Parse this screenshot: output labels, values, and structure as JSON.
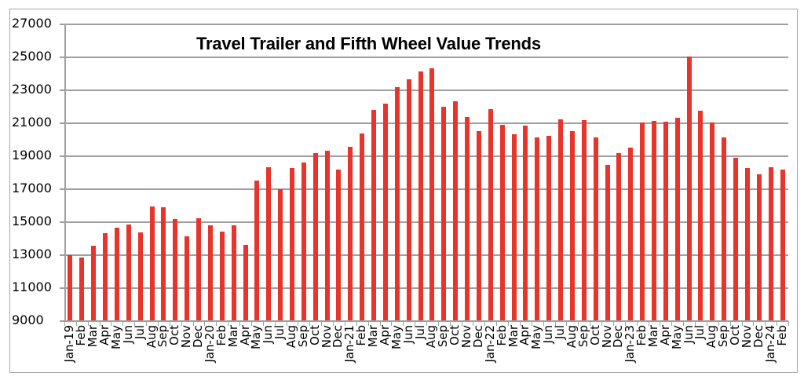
{
  "chart_data": {
    "type": "bar",
    "title": "Travel Trailer and Fifth Wheel Value Trends",
    "xlabel": "",
    "ylabel": "",
    "ylim": [
      9000,
      27000
    ],
    "yticks": [
      "27000",
      "25000",
      "23000",
      "21000",
      "19000",
      "17000",
      "15000",
      "13000",
      "11000",
      "9000"
    ],
    "grid": true,
    "legend": null,
    "bar_color": "#e8342a",
    "categories": [
      "Jan-19",
      "Feb",
      "Mar",
      "Apr",
      "May",
      "Jun",
      "Jul",
      "Aug",
      "Sep",
      "Oct",
      "Nov",
      "Dec",
      "Jan-20",
      "Feb",
      "Mar",
      "Apr",
      "May",
      "Jun",
      "Jul",
      "Aug",
      "Sep",
      "Oct",
      "Nov",
      "Dec",
      "Jan-21",
      "Feb",
      "Mar",
      "Apr",
      "May",
      "Jun",
      "Jul",
      "Aug",
      "Sep",
      "Oct",
      "Nov",
      "Dec",
      "Jan-22",
      "Feb",
      "Mar",
      "Apr",
      "May",
      "Jun",
      "Jul",
      "Aug",
      "Sep",
      "Oct",
      "Nov",
      "Dec",
      "Jan-23",
      "Feb",
      "Mar",
      "Apr",
      "May",
      "Jun",
      "Jul",
      "Aug",
      "Sep",
      "Oct",
      "Nov",
      "Dec",
      "Jan-24",
      "Feb"
    ],
    "values": [
      13000,
      12850,
      13570,
      14330,
      14670,
      14860,
      14380,
      15950,
      15900,
      15190,
      14140,
      15240,
      14810,
      14450,
      14830,
      13620,
      17520,
      18340,
      17000,
      18300,
      18640,
      19210,
      19340,
      18200,
      19560,
      20370,
      21830,
      22210,
      23180,
      23650,
      24150,
      24310,
      22010,
      22330,
      21380,
      20510,
      21840,
      20920,
      20350,
      20870,
      20160,
      20240,
      21220,
      20510,
      21190,
      20160,
      18500,
      19170,
      19540,
      21060,
      21140,
      21110,
      21350,
      25060,
      21750,
      21050,
      20130,
      18920,
      18300,
      17890,
      18330,
      18170
    ]
  }
}
